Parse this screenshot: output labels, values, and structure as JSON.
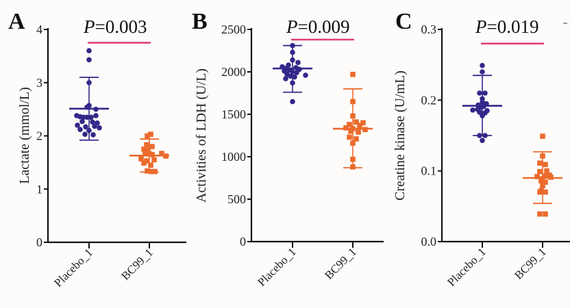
{
  "colors": {
    "placebo": "#33288a",
    "bc99": "#ec6a2c",
    "significance_bar": "#e0407a",
    "axis": "#111111"
  },
  "chart_data": [
    {
      "type": "scatter",
      "panel_label": "A",
      "title": "P=0.003",
      "p_prefix": "P",
      "p_value": "=0.003",
      "xlabel": "",
      "ylabel": "Lactate (mmol/L)",
      "ylim": [
        0,
        4
      ],
      "yticks": [
        0,
        1,
        2,
        3,
        4
      ],
      "ytick_labels": [
        "0",
        "1",
        "2",
        "3",
        "4"
      ],
      "categories": [
        "Placebo_1",
        "BC99_1"
      ],
      "series": [
        {
          "name": "Placebo_1",
          "marker": "circle",
          "mean": 2.51,
          "sd_upper": 3.1,
          "sd_lower": 1.92,
          "points": [
            [
              0,
              3.6
            ],
            [
              0,
              3.43
            ],
            [
              0,
              3.0
            ],
            [
              0,
              2.57
            ],
            [
              -3,
              2.54
            ],
            [
              10,
              2.5
            ],
            [
              -18,
              2.38
            ],
            [
              -13,
              2.36
            ],
            [
              -8,
              2.35
            ],
            [
              -3,
              2.35
            ],
            [
              3,
              2.35
            ],
            [
              10,
              2.38
            ],
            [
              -10,
              2.27
            ],
            [
              5,
              2.26
            ],
            [
              12,
              2.24
            ],
            [
              -17,
              2.2
            ],
            [
              -5,
              2.17
            ],
            [
              8,
              2.18
            ],
            [
              15,
              2.15
            ],
            [
              -13,
              2.12
            ],
            [
              0,
              2.1
            ],
            [
              -6,
              2.03
            ],
            [
              6,
              2.02
            ]
          ]
        },
        {
          "name": "BC99_1",
          "marker": "square",
          "mean": 1.63,
          "sd_upper": 1.94,
          "sd_lower": 1.32,
          "points": [
            [
              2,
              2.03
            ],
            [
              -3,
              2.0
            ],
            [
              -4,
              1.83
            ],
            [
              4,
              1.8
            ],
            [
              -8,
              1.75
            ],
            [
              -2,
              1.73
            ],
            [
              -6,
              1.67
            ],
            [
              0,
              1.66
            ],
            [
              4,
              1.65
            ],
            [
              18,
              1.67
            ],
            [
              24,
              1.62
            ],
            [
              -12,
              1.57
            ],
            [
              -4,
              1.53
            ],
            [
              7,
              1.55
            ],
            [
              -8,
              1.49
            ],
            [
              2,
              1.45
            ],
            [
              -3,
              1.34
            ],
            [
              3,
              1.33
            ],
            [
              8,
              1.33
            ]
          ]
        }
      ],
      "significance": {
        "from": "Placebo_1",
        "to": "BC99_1",
        "level": 3.75
      }
    },
    {
      "type": "scatter",
      "panel_label": "B",
      "title": "P=0.009",
      "p_prefix": "P",
      "p_value": "=0.009",
      "xlabel": "",
      "ylabel": "Activities of LDH (U/L)",
      "ylim": [
        0,
        2500
      ],
      "yticks": [
        0,
        500,
        1000,
        1500,
        2000,
        2500
      ],
      "ytick_labels": [
        "0",
        "500",
        "1000",
        "1500",
        "2000",
        "2500"
      ],
      "categories": [
        "Placebo_1",
        "BC99_1"
      ],
      "series": [
        {
          "name": "Placebo_1",
          "marker": "circle",
          "mean": 2040,
          "sd_upper": 2310,
          "sd_lower": 1760,
          "points": [
            [
              0,
              2310
            ],
            [
              0,
              2230
            ],
            [
              0,
              2140
            ],
            [
              8,
              2110
            ],
            [
              -6,
              2080
            ],
            [
              -15,
              2060
            ],
            [
              -10,
              2040
            ],
            [
              5,
              2050
            ],
            [
              10,
              2030
            ],
            [
              -5,
              2020
            ],
            [
              0,
              2000
            ],
            [
              -12,
              2010
            ],
            [
              6,
              1990
            ],
            [
              -8,
              1970
            ],
            [
              19,
              1960
            ],
            [
              -3,
              1950
            ],
            [
              3,
              1940
            ],
            [
              -10,
              1920
            ],
            [
              0,
              1870
            ],
            [
              0,
              1650
            ]
          ]
        },
        {
          "name": "BC99_1",
          "marker": "square",
          "mean": 1330,
          "sd_upper": 1800,
          "sd_lower": 870,
          "points": [
            [
              0,
              1970
            ],
            [
              0,
              1650
            ],
            [
              0,
              1480
            ],
            [
              5,
              1410
            ],
            [
              15,
              1400
            ],
            [
              -5,
              1380
            ],
            [
              10,
              1370
            ],
            [
              -10,
              1340
            ],
            [
              0,
              1330
            ],
            [
              18,
              1320
            ],
            [
              -3,
              1300
            ],
            [
              8,
              1290
            ],
            [
              -5,
              1230
            ],
            [
              5,
              1210
            ],
            [
              0,
              1160
            ],
            [
              0,
              970
            ],
            [
              0,
              880
            ]
          ]
        }
      ],
      "significance": {
        "from": "Placebo_1",
        "to": "BC99_1",
        "level": 2380
      }
    },
    {
      "type": "scatter",
      "panel_label": "C",
      "title": "P=0.019",
      "p_prefix": "P",
      "p_value": "=0.019",
      "xlabel": "",
      "ylabel": "Creatine kinase (U/mL)",
      "ylim": [
        0,
        0.3
      ],
      "yticks": [
        0,
        0.1,
        0.2,
        0.3
      ],
      "ytick_labels": [
        "0.0",
        "0.1",
        "0.2",
        "0.3"
      ],
      "categories": [
        "Placebo_1",
        "BC99_1"
      ],
      "series": [
        {
          "name": "Placebo_1",
          "marker": "circle",
          "mean": 0.192,
          "sd_upper": 0.235,
          "sd_lower": 0.15,
          "points": [
            [
              0,
              0.249
            ],
            [
              0,
              0.24
            ],
            [
              -4,
              0.21
            ],
            [
              4,
              0.21
            ],
            [
              0,
              0.202
            ],
            [
              0,
              0.197
            ],
            [
              -6,
              0.193
            ],
            [
              6,
              0.195
            ],
            [
              2,
              0.191
            ],
            [
              -2,
              0.19
            ],
            [
              -14,
              0.186
            ],
            [
              -7,
              0.187
            ],
            [
              7,
              0.185
            ],
            [
              -4,
              0.183
            ],
            [
              4,
              0.182
            ],
            [
              0,
              0.178
            ],
            [
              -4,
              0.15
            ],
            [
              4,
              0.15
            ],
            [
              0,
              0.143
            ]
          ]
        },
        {
          "name": "BC99_1",
          "marker": "square",
          "mean": 0.09,
          "sd_upper": 0.127,
          "sd_lower": 0.054,
          "points": [
            [
              0,
              0.149
            ],
            [
              0,
              0.121
            ],
            [
              -4,
              0.111
            ],
            [
              4,
              0.109
            ],
            [
              6,
              0.1
            ],
            [
              -4,
              0.099
            ],
            [
              10,
              0.094
            ],
            [
              -8,
              0.092
            ],
            [
              4,
              0.093
            ],
            [
              12,
              0.091
            ],
            [
              0,
              0.089
            ],
            [
              -2,
              0.086
            ],
            [
              4,
              0.084
            ],
            [
              0,
              0.079
            ],
            [
              -4,
              0.07
            ],
            [
              4,
              0.07
            ],
            [
              -2,
              0.072
            ],
            [
              -4,
              0.039
            ],
            [
              4,
              0.039
            ]
          ]
        }
      ],
      "significance": {
        "from": "Placebo_1",
        "to": "BC99_1",
        "level": 0.28
      }
    }
  ]
}
